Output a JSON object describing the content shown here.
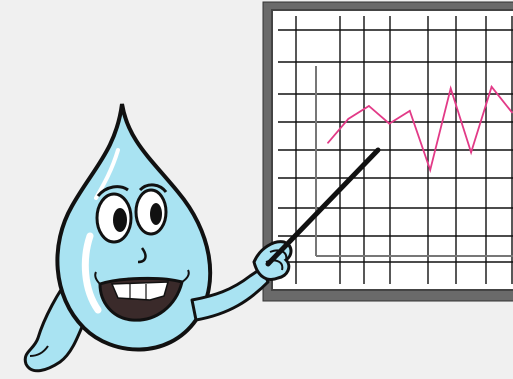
{
  "scene": {
    "background": "#f0f0f0",
    "characters": [
      {
        "icon": "water-drop-character-icon",
        "color": "#a9e3f2",
        "outline": "#111111",
        "gesture": "pointing-at-chart"
      }
    ],
    "props": {
      "pointer": {
        "icon": "pointer-stick-icon",
        "color": "#111111"
      },
      "board": {
        "icon": "presentation-board-icon",
        "frame_color": "#555555",
        "surface_color": "#ffffff",
        "grid_color": "#111111"
      }
    }
  },
  "chart_data": {
    "type": "line",
    "title": "",
    "xlabel": "",
    "ylabel": "",
    "grid": true,
    "series": [
      {
        "color": "#e23a87",
        "x": [
          0,
          1,
          2,
          3,
          4,
          5,
          6,
          7,
          8,
          9
        ],
        "y": [
          3.6,
          4.35,
          4.75,
          4.2,
          4.6,
          2.75,
          5.3,
          3.3,
          5.35,
          4.55
        ]
      }
    ],
    "xlim": [
      0,
      9
    ],
    "ylim": [
      0,
      7
    ]
  }
}
